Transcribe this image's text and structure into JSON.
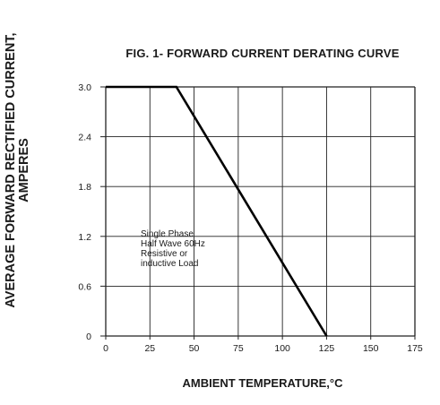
{
  "chart_data": {
    "type": "line",
    "title": "FIG. 1- FORWARD CURRENT DERATING CURVE",
    "xlabel": "AMBIENT TEMPERATURE,°C",
    "ylabel_lines": [
      "AVERAGE FORWARD RECTIFIED CURRENT,",
      "AMPERES"
    ],
    "x_ticks": [
      "0",
      "25",
      "50",
      "75",
      "100",
      "125",
      "150",
      "175"
    ],
    "y_ticks": [
      "3.0",
      "2.4",
      "1.8",
      "1.2",
      "0.6",
      "0"
    ],
    "xlim": [
      0,
      175
    ],
    "ylim": [
      0,
      3.0
    ],
    "grid": true,
    "series": [
      {
        "x": [
          0,
          40,
          125
        ],
        "y": [
          3.0,
          3.0,
          0
        ]
      }
    ],
    "annotation": [
      "Single Phase",
      "Half Wave 60Hz",
      "Resistive or",
      "inductive Load"
    ]
  }
}
